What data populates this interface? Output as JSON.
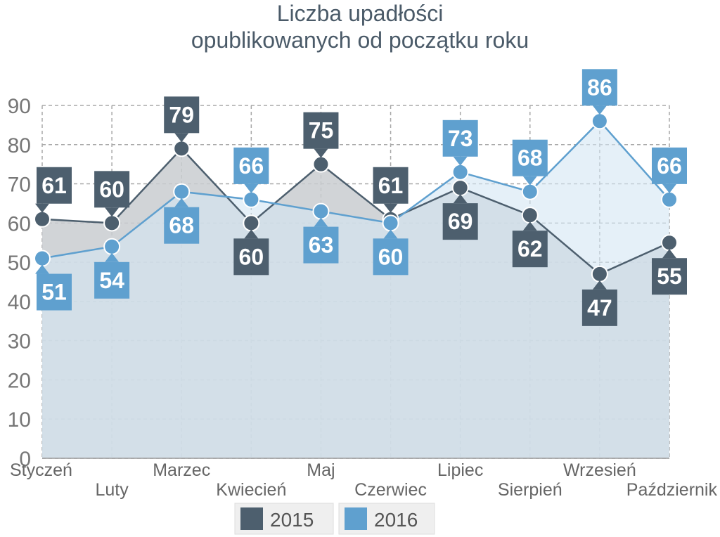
{
  "chart_data": {
    "type": "area",
    "title": [
      "Liczba upadłości",
      "opublikowanych od początku roku"
    ],
    "categories": [
      "Styczeń",
      "Luty",
      "Marzec",
      "Kwiecień",
      "Maj",
      "Czerwiec",
      "Lipiec",
      "Sierpień",
      "Wrzesień",
      "Październik"
    ],
    "ylim": [
      0,
      90
    ],
    "yticks": [
      "0",
      "10",
      "20",
      "30",
      "40",
      "50",
      "60",
      "70",
      "80",
      "90"
    ],
    "grid": true,
    "legend_position": "bottom",
    "series": [
      {
        "name": "2015",
        "color": "#4d5f6e",
        "fill": "#c9ccd0",
        "values": [
          61,
          60,
          79,
          60,
          75,
          61,
          69,
          62,
          47,
          55
        ]
      },
      {
        "name": "2016",
        "color": "#5fa0cf",
        "fill": "#d4e6f3",
        "values": [
          51,
          54,
          68,
          66,
          63,
          60,
          73,
          68,
          86,
          66
        ]
      }
    ]
  }
}
